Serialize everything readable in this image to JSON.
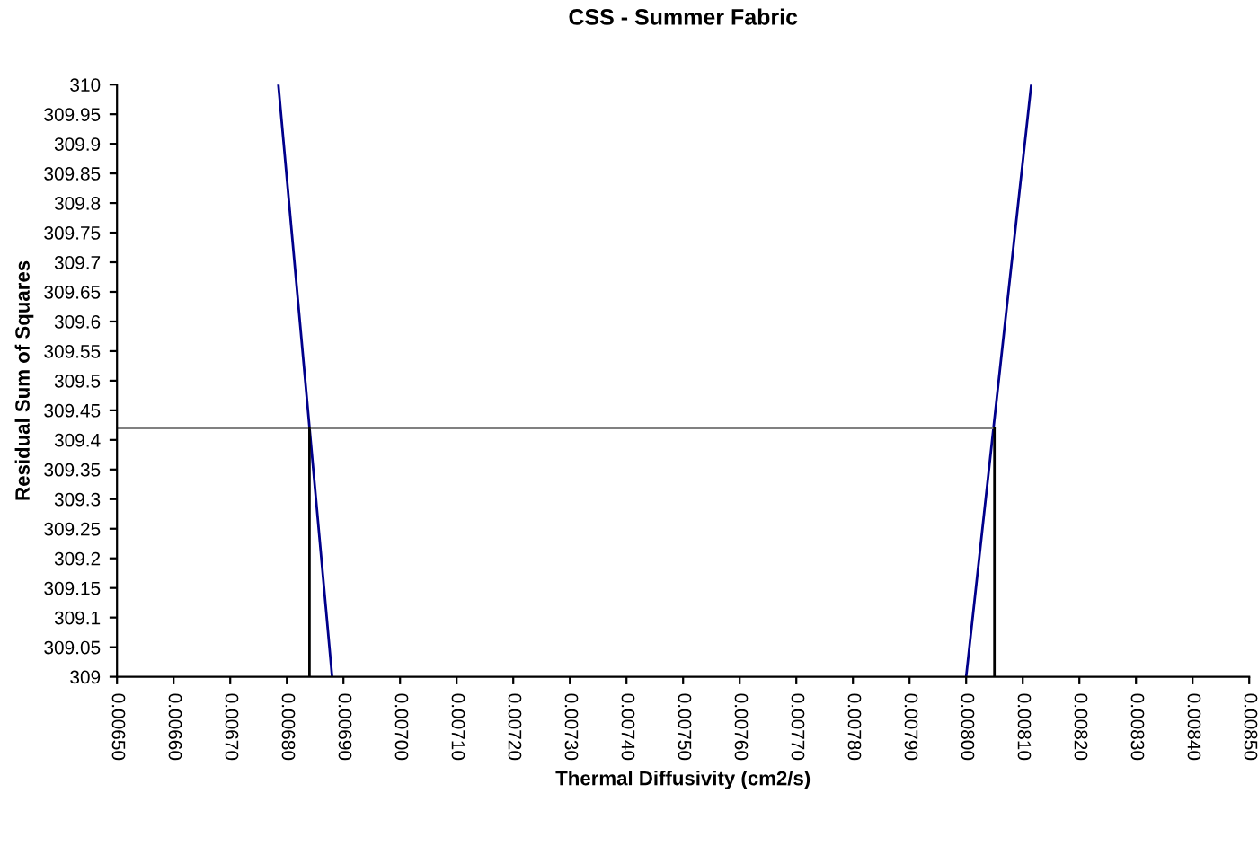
{
  "chart_data": {
    "type": "line",
    "title": "CSS - Summer Fabric",
    "xlabel": "Thermal Diffusivity (cm2/s)",
    "ylabel": "Residual Sum of Squares",
    "xlim": [
      0.0065,
      0.0085
    ],
    "ylim": [
      309,
      310
    ],
    "xticks": [
      {
        "value": 0.0065,
        "label": "0.00650"
      },
      {
        "value": 0.0066,
        "label": "0.00660"
      },
      {
        "value": 0.0067,
        "label": "0.00670"
      },
      {
        "value": 0.0068,
        "label": "0.00680"
      },
      {
        "value": 0.0069,
        "label": "0.00690"
      },
      {
        "value": 0.007,
        "label": "0.00700"
      },
      {
        "value": 0.0071,
        "label": "0.00710"
      },
      {
        "value": 0.0072,
        "label": "0.00720"
      },
      {
        "value": 0.0073,
        "label": "0.00730"
      },
      {
        "value": 0.0074,
        "label": "0.00740"
      },
      {
        "value": 0.0075,
        "label": "0.00750"
      },
      {
        "value": 0.0076,
        "label": "0.00760"
      },
      {
        "value": 0.0077,
        "label": "0.00770"
      },
      {
        "value": 0.0078,
        "label": "0.00780"
      },
      {
        "value": 0.0079,
        "label": "0.00790"
      },
      {
        "value": 0.008,
        "label": "0.00800"
      },
      {
        "value": 0.0081,
        "label": "0.00810"
      },
      {
        "value": 0.0082,
        "label": "0.00820"
      },
      {
        "value": 0.0083,
        "label": "0.00830"
      },
      {
        "value": 0.0084,
        "label": "0.00840"
      },
      {
        "value": 0.0085,
        "label": "0.00850"
      }
    ],
    "yticks": [
      309,
      309.05,
      309.1,
      309.15,
      309.2,
      309.25,
      309.3,
      309.35,
      309.4,
      309.45,
      309.5,
      309.55,
      309.6,
      309.65,
      309.7,
      309.75,
      309.8,
      309.85,
      309.9,
      309.95,
      310
    ],
    "grid": false,
    "legend": false,
    "marker": "none",
    "line_style": "solid",
    "series": [
      {
        "color": "#00008b",
        "x": [
          0.006785,
          0.00688,
          0.0074,
          0.008,
          0.008115
        ],
        "values": [
          310,
          309,
          null,
          309,
          310
        ]
      },
      {
        "color": "#808080",
        "x": [
          0.0065,
          0.00805
        ],
        "values": [
          309.42,
          309.42
        ]
      },
      {
        "color": "#000000",
        "x": [
          0.00684,
          0.00684
        ],
        "values": [
          309,
          309.42
        ]
      },
      {
        "color": "#000000",
        "x": [
          0.00805,
          0.00805
        ],
        "values": [
          309,
          309.42
        ]
      }
    ]
  }
}
